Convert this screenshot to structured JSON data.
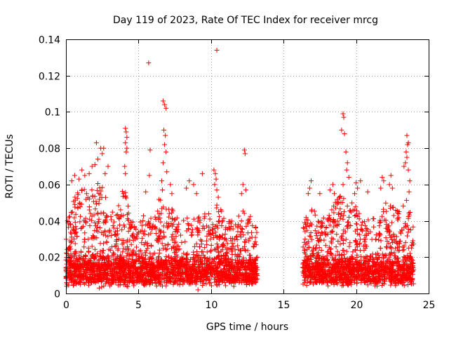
{
  "chart_data": {
    "type": "scatter",
    "title": "Day 119 of 2023, Rate Of TEC Index for receiver mrcg",
    "xlabel": "GPS time / hours",
    "ylabel": "ROTI / TECUs",
    "xlim": [
      0,
      25
    ],
    "ylim": [
      0,
      0.14
    ],
    "xticks": [
      0,
      5,
      10,
      15,
      20,
      25
    ],
    "xtick_labels": [
      "0",
      "5",
      "10",
      "15",
      "20",
      "25"
    ],
    "yticks": [
      0,
      0.02,
      0.04,
      0.06,
      0.08,
      0.1,
      0.12,
      0.14
    ],
    "ytick_labels": [
      "0",
      "0.02",
      "0.04",
      "0.06",
      "0.08",
      "0.1",
      "0.12",
      "0.14"
    ],
    "grid": true,
    "marker": "+",
    "color": "#ff0000",
    "segments": [
      {
        "name": "observed-1",
        "x_start": 0.0,
        "x_end": 13.2
      },
      {
        "name": "observed-2",
        "x_start": 16.3,
        "x_end": 24.0
      }
    ],
    "envelope": [
      [
        0.0,
        0.035
      ],
      [
        0.5,
        0.055
      ],
      [
        1.0,
        0.06
      ],
      [
        1.5,
        0.055
      ],
      [
        2.0,
        0.065
      ],
      [
        2.5,
        0.06
      ],
      [
        3.0,
        0.048
      ],
      [
        3.5,
        0.045
      ],
      [
        4.0,
        0.06
      ],
      [
        4.5,
        0.04
      ],
      [
        5.0,
        0.038
      ],
      [
        5.5,
        0.045
      ],
      [
        6.0,
        0.04
      ],
      [
        6.5,
        0.06
      ],
      [
        7.0,
        0.05
      ],
      [
        7.5,
        0.045
      ],
      [
        8.0,
        0.04
      ],
      [
        8.5,
        0.045
      ],
      [
        9.0,
        0.045
      ],
      [
        9.5,
        0.045
      ],
      [
        10.0,
        0.045
      ],
      [
        10.5,
        0.05
      ],
      [
        11.0,
        0.04
      ],
      [
        11.5,
        0.04
      ],
      [
        12.0,
        0.045
      ],
      [
        12.5,
        0.048
      ],
      [
        13.2,
        0.035
      ],
      [
        16.3,
        0.04
      ],
      [
        17.0,
        0.048
      ],
      [
        17.5,
        0.04
      ],
      [
        18.0,
        0.045
      ],
      [
        18.5,
        0.05
      ],
      [
        19.0,
        0.055
      ],
      [
        19.5,
        0.05
      ],
      [
        20.0,
        0.05
      ],
      [
        20.5,
        0.045
      ],
      [
        21.0,
        0.045
      ],
      [
        21.5,
        0.04
      ],
      [
        22.0,
        0.05
      ],
      [
        22.5,
        0.048
      ],
      [
        23.0,
        0.045
      ],
      [
        23.5,
        0.055
      ],
      [
        24.0,
        0.035
      ]
    ],
    "base_level": 0.014,
    "notable_points": [
      {
        "x": 10.4,
        "y": 0.134
      },
      {
        "x": 5.7,
        "y": 0.127
      },
      {
        "x": 6.7,
        "y": 0.106
      },
      {
        "x": 6.8,
        "y": 0.104
      },
      {
        "x": 6.9,
        "y": 0.102
      },
      {
        "x": 6.75,
        "y": 0.09
      },
      {
        "x": 6.85,
        "y": 0.087
      },
      {
        "x": 6.8,
        "y": 0.082
      },
      {
        "x": 6.9,
        "y": 0.078
      },
      {
        "x": 6.7,
        "y": 0.072
      },
      {
        "x": 6.95,
        "y": 0.067
      },
      {
        "x": 6.6,
        "y": 0.062
      },
      {
        "x": 6.65,
        "y": 0.057
      },
      {
        "x": 19.1,
        "y": 0.099
      },
      {
        "x": 19.15,
        "y": 0.097
      },
      {
        "x": 19.0,
        "y": 0.09
      },
      {
        "x": 19.2,
        "y": 0.088
      },
      {
        "x": 19.3,
        "y": 0.078
      },
      {
        "x": 19.4,
        "y": 0.072
      },
      {
        "x": 19.35,
        "y": 0.068
      },
      {
        "x": 19.5,
        "y": 0.064
      },
      {
        "x": 19.1,
        "y": 0.06
      },
      {
        "x": 4.1,
        "y": 0.091
      },
      {
        "x": 4.15,
        "y": 0.089
      },
      {
        "x": 4.2,
        "y": 0.086
      },
      {
        "x": 4.1,
        "y": 0.083
      },
      {
        "x": 4.2,
        "y": 0.08
      },
      {
        "x": 4.15,
        "y": 0.078
      },
      {
        "x": 4.05,
        "y": 0.07
      },
      {
        "x": 4.1,
        "y": 0.066
      },
      {
        "x": 2.1,
        "y": 0.083
      },
      {
        "x": 2.4,
        "y": 0.08
      },
      {
        "x": 2.6,
        "y": 0.08
      },
      {
        "x": 2.5,
        "y": 0.077
      },
      {
        "x": 2.2,
        "y": 0.074
      },
      {
        "x": 2.0,
        "y": 0.071
      },
      {
        "x": 1.8,
        "y": 0.07
      },
      {
        "x": 2.9,
        "y": 0.07
      },
      {
        "x": 2.7,
        "y": 0.066
      },
      {
        "x": 1.1,
        "y": 0.068
      },
      {
        "x": 1.3,
        "y": 0.065
      },
      {
        "x": 0.6,
        "y": 0.065
      },
      {
        "x": 0.4,
        "y": 0.062
      },
      {
        "x": 0.9,
        "y": 0.063
      },
      {
        "x": 1.6,
        "y": 0.066
      },
      {
        "x": 5.8,
        "y": 0.079
      },
      {
        "x": 5.75,
        "y": 0.065
      },
      {
        "x": 5.5,
        "y": 0.056
      },
      {
        "x": 7.2,
        "y": 0.06
      },
      {
        "x": 7.3,
        "y": 0.055
      },
      {
        "x": 10.2,
        "y": 0.068
      },
      {
        "x": 10.3,
        "y": 0.066
      },
      {
        "x": 10.35,
        "y": 0.063
      },
      {
        "x": 10.25,
        "y": 0.06
      },
      {
        "x": 10.4,
        "y": 0.057
      },
      {
        "x": 10.5,
        "y": 0.053
      },
      {
        "x": 9.4,
        "y": 0.066
      },
      {
        "x": 8.8,
        "y": 0.06
      },
      {
        "x": 8.3,
        "y": 0.058
      },
      {
        "x": 8.5,
        "y": 0.062
      },
      {
        "x": 9.0,
        "y": 0.055
      },
      {
        "x": 12.3,
        "y": 0.079
      },
      {
        "x": 12.35,
        "y": 0.077
      },
      {
        "x": 12.2,
        "y": 0.06
      },
      {
        "x": 12.4,
        "y": 0.057
      },
      {
        "x": 12.1,
        "y": 0.055
      },
      {
        "x": 23.5,
        "y": 0.087
      },
      {
        "x": 23.6,
        "y": 0.083
      },
      {
        "x": 23.55,
        "y": 0.082
      },
      {
        "x": 23.45,
        "y": 0.078
      },
      {
        "x": 23.5,
        "y": 0.075
      },
      {
        "x": 23.4,
        "y": 0.072
      },
      {
        "x": 23.3,
        "y": 0.07
      },
      {
        "x": 23.6,
        "y": 0.068
      },
      {
        "x": 23.7,
        "y": 0.062
      },
      {
        "x": 23.65,
        "y": 0.056
      },
      {
        "x": 16.9,
        "y": 0.062
      },
      {
        "x": 16.8,
        "y": 0.058
      },
      {
        "x": 16.7,
        "y": 0.055
      },
      {
        "x": 18.4,
        "y": 0.06
      },
      {
        "x": 18.2,
        "y": 0.057
      },
      {
        "x": 18.5,
        "y": 0.055
      },
      {
        "x": 20.0,
        "y": 0.061
      },
      {
        "x": 20.1,
        "y": 0.058
      },
      {
        "x": 19.9,
        "y": 0.055
      },
      {
        "x": 20.3,
        "y": 0.062
      },
      {
        "x": 21.8,
        "y": 0.064
      },
      {
        "x": 21.9,
        "y": 0.062
      },
      {
        "x": 21.7,
        "y": 0.058
      },
      {
        "x": 22.4,
        "y": 0.065
      },
      {
        "x": 22.3,
        "y": 0.06
      },
      {
        "x": 22.5,
        "y": 0.058
      },
      {
        "x": 20.8,
        "y": 0.056
      },
      {
        "x": 17.5,
        "y": 0.055
      },
      {
        "x": 0.1,
        "y": 0.04
      },
      {
        "x": 0.05,
        "y": 0.004
      },
      {
        "x": 1.0,
        "y": 0.005
      },
      {
        "x": 2.3,
        "y": 0.003
      },
      {
        "x": 9.1,
        "y": 0.002
      },
      {
        "x": 7.4,
        "y": 0.005
      },
      {
        "x": 19.3,
        "y": 0.006
      },
      {
        "x": 13.2,
        "y": 0.02
      }
    ]
  }
}
